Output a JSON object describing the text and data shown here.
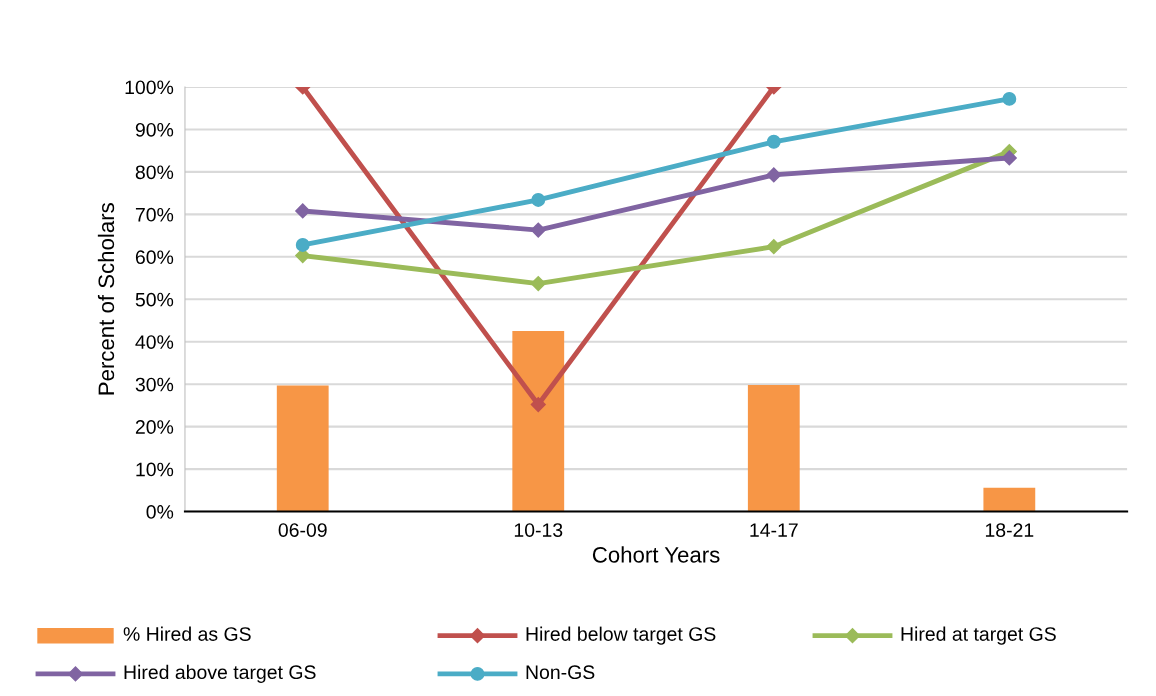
{
  "chart_data": {
    "type": "line",
    "xlabel": "Cohort Years",
    "ylabel": "Percent of Scholars",
    "categories": [
      "06-09",
      "10-13",
      "14-17",
      "18-21"
    ],
    "series": [
      {
        "name": "% Hired as GS",
        "type": "bar",
        "color": "#f79646",
        "values": [
          29.7,
          42.5,
          29.8,
          5.6
        ]
      },
      {
        "name": "Hired below target GS",
        "color": "#c0504d",
        "marker": "diamond",
        "values": [
          100,
          25.2,
          100,
          null
        ]
      },
      {
        "name": "Hired at target GS",
        "color": "#9bbb59",
        "marker": "diamond",
        "values": [
          60.3,
          53.7,
          62.4,
          84.8
        ]
      },
      {
        "name": "Hired above target GS",
        "color": "#8064a2",
        "marker": "diamond",
        "values": [
          70.8,
          66.3,
          79.3,
          83.3
        ]
      },
      {
        "name": "Non-GS",
        "color": "#4bacc6",
        "marker": "circle",
        "values": [
          62.8,
          73.4,
          87.1,
          97.2
        ]
      }
    ],
    "ylim": [
      0,
      100
    ],
    "yticks": [
      {
        "value": 0,
        "label": "0%"
      },
      {
        "value": 10,
        "label": "10%"
      },
      {
        "value": 20,
        "label": "20%"
      },
      {
        "value": 30,
        "label": "30%"
      },
      {
        "value": 40,
        "label": "40%"
      },
      {
        "value": 50,
        "label": "50%"
      },
      {
        "value": 60,
        "label": "60%"
      },
      {
        "value": 70,
        "label": "70%"
      },
      {
        "value": 80,
        "label": "80%"
      },
      {
        "value": 90,
        "label": "90%"
      },
      {
        "value": 100,
        "label": "100%"
      }
    ],
    "grid": "y",
    "legend": "bottom"
  }
}
